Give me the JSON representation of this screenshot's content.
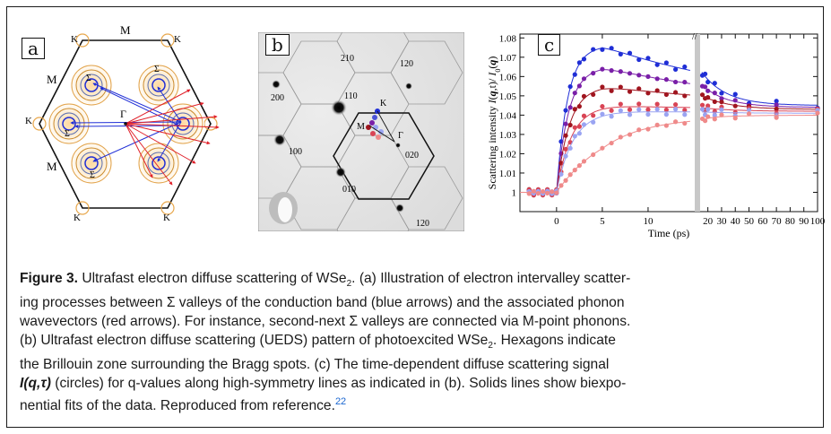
{
  "panel_a": {
    "label": "a",
    "points": {
      "K_top_left": "K",
      "K_top_right": "K",
      "K_left": "K",
      "K_bottom_left": "K",
      "K_bottom_right": "K",
      "M_top": "M",
      "M_left_upper": "M",
      "M_left_lower": "M",
      "gamma": "Γ",
      "sigma": "Σ"
    }
  },
  "panel_b": {
    "label": "b",
    "spots": [
      "210",
      "120",
      "200",
      "110",
      "100",
      "020",
      "010",
      "120"
    ],
    "points": {
      "K": "K",
      "M": "M",
      "gamma": "Γ"
    }
  },
  "chart_data": {
    "type": "scatter",
    "label": "c",
    "xlabel": "Time (ps)",
    "ylabel": "Scattering intensity I(q,t)/ I0(q)",
    "ylabel_parts": [
      "Scattering intensity ",
      "I",
      "(",
      "q",
      ",t)/ ",
      "I",
      "0",
      "(",
      "q",
      ")"
    ],
    "x_ticks_left": [
      "0",
      "5",
      "10"
    ],
    "x_ticks_right": [
      "20",
      "30",
      "40",
      "50",
      "60",
      "70",
      "80",
      "90",
      "100"
    ],
    "y_ticks": [
      "1",
      "1.01",
      "1.02",
      "1.03",
      "1.04",
      "1.05",
      "1.06",
      "1.07",
      "1.08"
    ],
    "ylim": [
      0.99,
      1.082
    ],
    "xlim_left": [
      -4,
      15
    ],
    "xlim_right": [
      15,
      100
    ],
    "axis_break_at": 15,
    "series": [
      {
        "color": "#1f2ed6",
        "amp": 1.076,
        "tau": 1.2,
        "decay": 1.045,
        "tau2": 18
      },
      {
        "color": "#7a1fa8",
        "amp": 1.065,
        "tau": 1.3,
        "decay": 1.044,
        "tau2": 18
      },
      {
        "color": "#a0151f",
        "amp": 1.055,
        "tau": 1.4,
        "decay": 1.043,
        "tau2": 20
      },
      {
        "color": "#d94455",
        "amp": 1.045,
        "tau": 1.6,
        "decay": 1.042,
        "tau2": 22
      },
      {
        "color": "#9aa4f2",
        "amp": 1.042,
        "tau": 1.8,
        "decay": 1.041,
        "tau2": 24
      },
      {
        "color": "#ef8a8a",
        "amp": 1.038,
        "tau": 5.5,
        "decay": 1.04,
        "tau2": 26
      }
    ]
  },
  "caption": {
    "figure_label": "Figure 3.",
    "title_pre": " Ultrafast electron diffuse scattering of WSe",
    "title_sub": "2",
    "title_post": ". (a) Illustration of electron intervalley scatter-",
    "line2": "ing processes between Σ valleys of the conduction band (blue arrows) and the associated phonon",
    "line3": "wavevectors (red arrows). For instance, second-next Σ valleys are connected via M-point phonons.",
    "line4_pre": "(b) Ultrafast electron diffuse scattering (UEDS) pattern of photoexcited WSe",
    "line4_sub": "2",
    "line4_post": ". Hexagons indicate",
    "line5": "the Brillouin zone surrounding the Bragg spots. (c) The time-dependent diffuse scattering signal",
    "line6_i": "I(q,τ)",
    "line6_post": " (circles) for q-values along high-symmetry lines as indicated in (b). Solids lines show biexpo-",
    "line7_pre": "nential fits of the data. Reproduced from reference.",
    "line7_ref": "22"
  }
}
